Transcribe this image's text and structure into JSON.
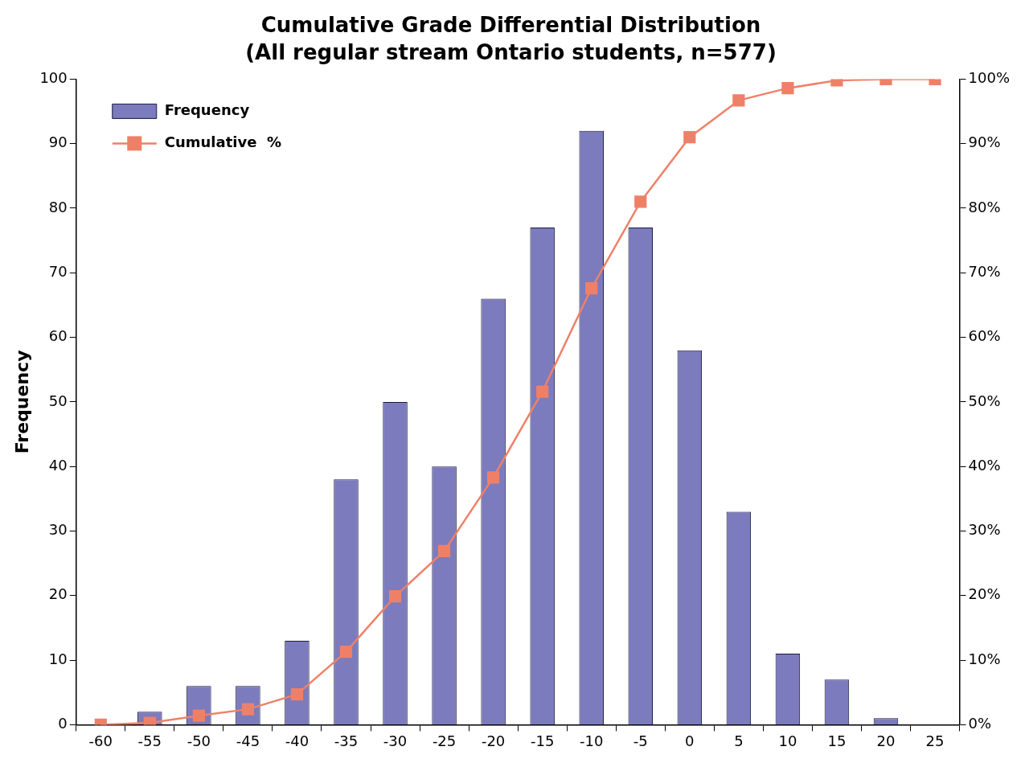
{
  "chart_data": {
    "type": "bar",
    "title": "Cumulative Grade Differential Distribution",
    "subtitle": "(All regular stream Ontario students, n=577)",
    "ylabel": "Frequency",
    "categories": [
      "-60",
      "-55",
      "-50",
      "-45",
      "-40",
      "-35",
      "-30",
      "-25",
      "-20",
      "-15",
      "-10",
      "-5",
      "0",
      "5",
      "10",
      "15",
      "20",
      "25"
    ],
    "series": [
      {
        "name": "Frequency",
        "color": "#7b7bbd",
        "values": [
          0,
          2,
          6,
          6,
          13,
          38,
          50,
          40,
          66,
          77,
          92,
          77,
          58,
          33,
          11,
          7,
          1,
          0
        ]
      },
      {
        "name": "Cumulative  %",
        "type": "line",
        "axis": "y2",
        "color": "#ef8068",
        "values": [
          0,
          0.3,
          1.4,
          2.4,
          4.7,
          11.3,
          19.9,
          26.9,
          38.3,
          51.6,
          67.6,
          81.0,
          91.0,
          96.7,
          98.6,
          99.8,
          100,
          100
        ]
      }
    ],
    "ylim": [
      0,
      100
    ],
    "yticks": [
      0,
      10,
      20,
      30,
      40,
      50,
      60,
      70,
      80,
      90,
      100
    ],
    "y2lim": [
      0,
      100
    ],
    "y2ticks": [
      {
        "value": 0,
        "label": "0%"
      },
      {
        "value": 10,
        "label": "10%"
      },
      {
        "value": 20,
        "label": "20%"
      },
      {
        "value": 30,
        "label": "30%"
      },
      {
        "value": 40,
        "label": "40%"
      },
      {
        "value": 50,
        "label": "50%"
      },
      {
        "value": 60,
        "label": "60%"
      },
      {
        "value": 70,
        "label": "70%"
      },
      {
        "value": 80,
        "label": "80%"
      },
      {
        "value": 90,
        "label": "90%"
      },
      {
        "value": 100,
        "label": "100%"
      }
    ],
    "grid": false,
    "legend": "top left",
    "marker": "square",
    "line_style": "solid"
  }
}
